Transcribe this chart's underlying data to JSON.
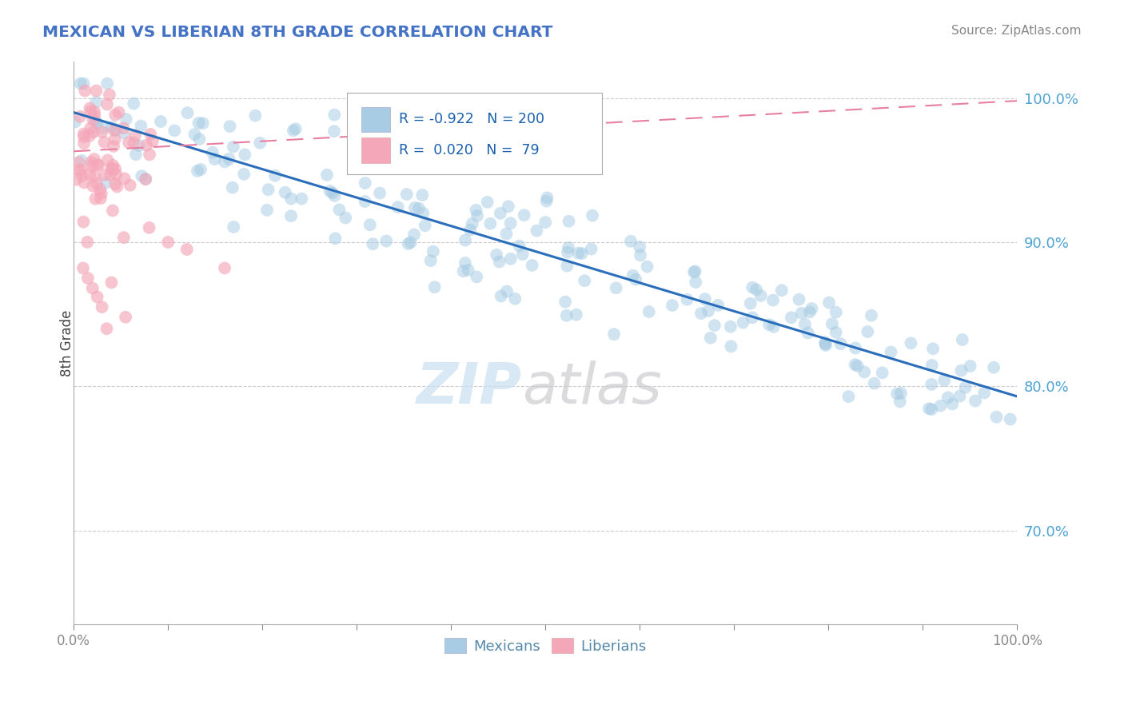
{
  "title": "MEXICAN VS LIBERIAN 8TH GRADE CORRELATION CHART",
  "source": "Source: ZipAtlas.com",
  "ylabel": "8th Grade",
  "legend": {
    "blue_label": "Mexicans",
    "pink_label": "Liberians"
  },
  "blue_color": "#a8cce4",
  "pink_color": "#f4a7b8",
  "blue_line_color": "#2a6ebb",
  "pink_line_color": "#e87fa0",
  "title_color": "#4472c4",
  "right_axis_color": "#4fa3d4",
  "ylim": [
    0.635,
    1.025
  ],
  "xlim": [
    0.0,
    1.0
  ],
  "yticks": [
    0.7,
    0.8,
    0.9,
    1.0
  ],
  "ytick_labels": [
    "70.0%",
    "80.0%",
    "90.0%",
    "100.0%"
  ],
  "grid_color": "#cccccc",
  "background_color": "#ffffff",
  "blue_line_start_x": 0.0,
  "blue_line_start_y": 0.99,
  "blue_line_end_x": 1.0,
  "blue_line_end_y": 0.793,
  "pink_line_start_x": 0.0,
  "pink_line_start_y": 0.963,
  "pink_line_end_x": 1.0,
  "pink_line_end_y": 0.998,
  "xticks": [
    0.0,
    0.1,
    0.2,
    0.3,
    0.4,
    0.5,
    0.6,
    0.7,
    0.8,
    0.9,
    1.0
  ],
  "xtick_labels_show": [
    "0.0%",
    "",
    "",
    "",
    "",
    "",
    "",
    "",
    "",
    "",
    "100.0%"
  ]
}
